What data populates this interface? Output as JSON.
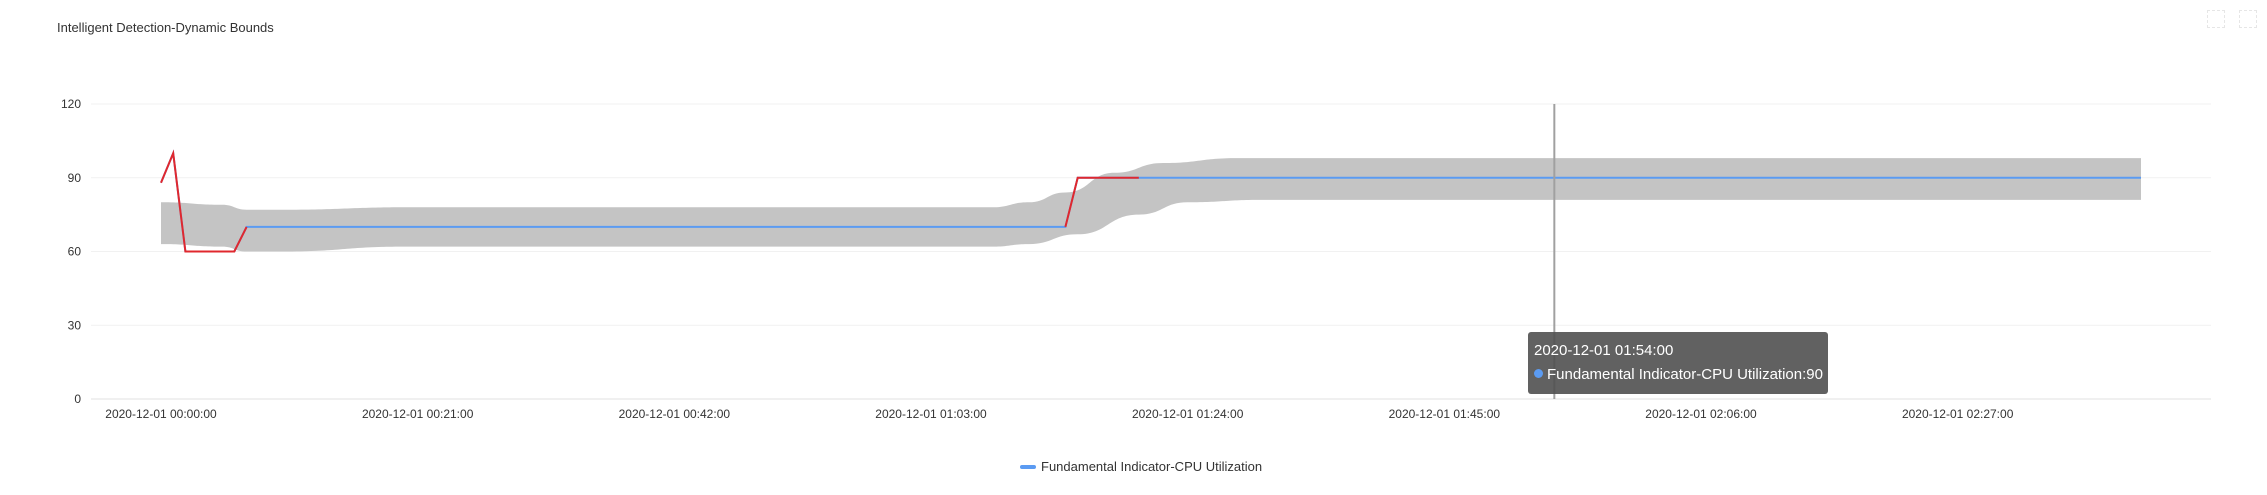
{
  "chart_data": {
    "type": "line",
    "title": "Intelligent Detection-Dynamic Bounds",
    "xlabel": "",
    "ylabel": "",
    "ylim": [
      0,
      120
    ],
    "yticks": [
      0,
      30,
      60,
      90,
      120
    ],
    "x_start": "2020-12-01 00:00:00",
    "x_end": "2020-12-01 02:42:00",
    "xtick_labels": [
      "2020-12-01 00:00:00",
      "2020-12-01 00:21:00",
      "2020-12-01 00:42:00",
      "2020-12-01 01:03:00",
      "2020-12-01 01:24:00",
      "2020-12-01 01:45:00",
      "2020-12-01 02:06:00",
      "2020-12-01 02:27:00"
    ],
    "grid": true,
    "legend_position": "bottom-center",
    "series": [
      {
        "name": "Fundamental Indicator-CPU Utilization",
        "color": "#5b9bf2",
        "points": [
          [
            "2020-12-01 00:00:00",
            88
          ],
          [
            "2020-12-01 00:01:00",
            100
          ],
          [
            "2020-12-01 00:02:00",
            60
          ],
          [
            "2020-12-01 00:06:00",
            60
          ],
          [
            "2020-12-01 00:07:00",
            70
          ],
          [
            "2020-12-01 01:14:00",
            70
          ],
          [
            "2020-12-01 01:15:00",
            90
          ],
          [
            "2020-12-01 02:42:00",
            90
          ]
        ]
      }
    ],
    "anomaly_color": "#e0282e",
    "anomaly_segments": [
      [
        [
          "2020-12-01 00:00:00",
          88
        ],
        [
          "2020-12-01 00:01:00",
          100
        ],
        [
          "2020-12-01 00:02:00",
          60
        ],
        [
          "2020-12-01 00:06:00",
          60
        ],
        [
          "2020-12-01 00:07:00",
          70
        ]
      ],
      [
        [
          "2020-12-01 01:14:00",
          70
        ],
        [
          "2020-12-01 01:15:00",
          90
        ],
        [
          "2020-12-01 01:20:00",
          90
        ]
      ]
    ],
    "band": {
      "color": "#c4c4c4",
      "upper": [
        [
          "2020-12-01 00:00:00",
          80
        ],
        [
          "2020-12-01 00:05:00",
          79
        ],
        [
          "2020-12-01 00:07:00",
          77
        ],
        [
          "2020-12-01 00:10:00",
          77
        ],
        [
          "2020-12-01 00:20:00",
          78
        ],
        [
          "2020-12-01 01:08:00",
          78
        ],
        [
          "2020-12-01 01:11:00",
          80
        ],
        [
          "2020-12-01 01:14:00",
          84
        ],
        [
          "2020-12-01 01:18:00",
          92
        ],
        [
          "2020-12-01 01:22:00",
          96
        ],
        [
          "2020-12-01 01:28:00",
          98
        ],
        [
          "2020-12-01 01:35:00",
          98
        ],
        [
          "2020-12-01 02:42:00",
          98
        ]
      ],
      "lower": [
        [
          "2020-12-01 00:00:00",
          63
        ],
        [
          "2020-12-01 00:05:00",
          62
        ],
        [
          "2020-12-01 00:07:00",
          60
        ],
        [
          "2020-12-01 00:10:00",
          60
        ],
        [
          "2020-12-01 00:20:00",
          62
        ],
        [
          "2020-12-01 01:08:00",
          62
        ],
        [
          "2020-12-01 01:11:00",
          63
        ],
        [
          "2020-12-01 01:15:00",
          67
        ],
        [
          "2020-12-01 01:20:00",
          75
        ],
        [
          "2020-12-01 01:24:00",
          80
        ],
        [
          "2020-12-01 01:30:00",
          81
        ],
        [
          "2020-12-01 02:42:00",
          81
        ]
      ]
    },
    "cursor_time": "2020-12-01 01:54:00",
    "tooltip": {
      "time": "2020-12-01 01:54:00",
      "label": "Fundamental Indicator-CPU Utilization:90"
    }
  },
  "toolbar": {
    "icons": [
      "restore-icon",
      "fullscreen-icon"
    ]
  }
}
